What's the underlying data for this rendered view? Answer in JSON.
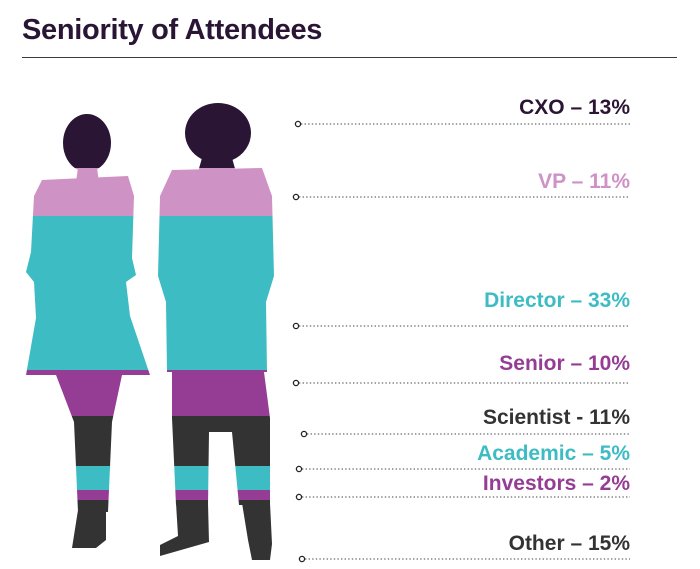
{
  "title": "Seniority of Attendees",
  "chart_data": {
    "type": "bar",
    "title": "Seniority of Attendees",
    "categories": [
      "CXO",
      "VP",
      "Director",
      "Senior",
      "Scientist",
      "Academic",
      "Investors",
      "Other"
    ],
    "values": [
      13,
      11,
      33,
      10,
      11,
      5,
      2,
      15
    ],
    "unit": "%",
    "labels": [
      "CXO – 13%",
      "VP – 11%",
      "Director – 33%",
      "Senior – 10%",
      "Scientist - 11%",
      "Academic – 5%",
      "Investors – 2%",
      "Other – 15%"
    ],
    "colors": [
      "#2a1535",
      "#cf92c4",
      "#3dbcc4",
      "#953d95",
      "#333333",
      "#3dbcc4",
      "#953d95",
      "#333333"
    ]
  }
}
